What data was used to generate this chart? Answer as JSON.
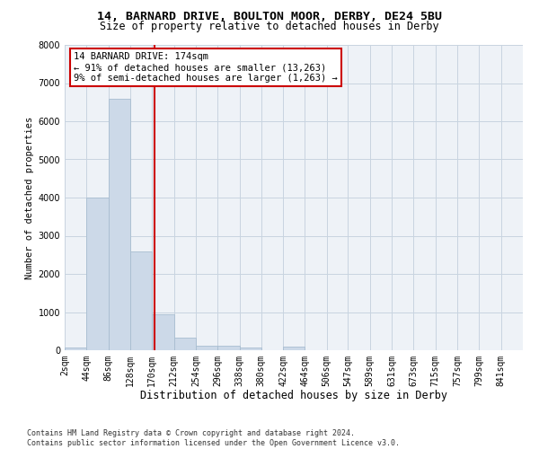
{
  "title": "14, BARNARD DRIVE, BOULTON MOOR, DERBY, DE24 5BU",
  "subtitle": "Size of property relative to detached houses in Derby",
  "xlabel": "Distribution of detached houses by size in Derby",
  "ylabel": "Number of detached properties",
  "footer_line1": "Contains HM Land Registry data © Crown copyright and database right 2024.",
  "footer_line2": "Contains public sector information licensed under the Open Government Licence v3.0.",
  "bar_color": "#ccd9e8",
  "bar_edge_color": "#a8bdd0",
  "grid_color": "#c8d4e0",
  "background_color": "#eef2f7",
  "annotation_box_color": "#cc0000",
  "vline_color": "#cc0000",
  "bins_left_edges": [
    2,
    44,
    86,
    128,
    170,
    212,
    254,
    296,
    338,
    380,
    422,
    464,
    506,
    547,
    589,
    631,
    673,
    715,
    757,
    799,
    841
  ],
  "bin_labels": [
    "2sqm",
    "44sqm",
    "86sqm",
    "128sqm",
    "170sqm",
    "212sqm",
    "254sqm",
    "296sqm",
    "338sqm",
    "380sqm",
    "422sqm",
    "464sqm",
    "506sqm",
    "547sqm",
    "589sqm",
    "631sqm",
    "673sqm",
    "715sqm",
    "757sqm",
    "799sqm",
    "841sqm"
  ],
  "bar_heights": [
    60,
    4000,
    6600,
    2600,
    950,
    320,
    120,
    110,
    60,
    0,
    90,
    0,
    0,
    0,
    0,
    0,
    0,
    0,
    0,
    0,
    0
  ],
  "property_size": 174,
  "annotation_title": "14 BARNARD DRIVE: 174sqm",
  "annotation_line1": "← 91% of detached houses are smaller (13,263)",
  "annotation_line2": "9% of semi-detached houses are larger (1,263) →",
  "ylim": [
    0,
    8000
  ],
  "yticks": [
    0,
    1000,
    2000,
    3000,
    4000,
    5000,
    6000,
    7000,
    8000
  ],
  "title_fontsize": 9.5,
  "subtitle_fontsize": 8.5,
  "xlabel_fontsize": 8.5,
  "ylabel_fontsize": 7.5,
  "tick_fontsize": 7,
  "annotation_fontsize": 7.5,
  "footer_fontsize": 6
}
